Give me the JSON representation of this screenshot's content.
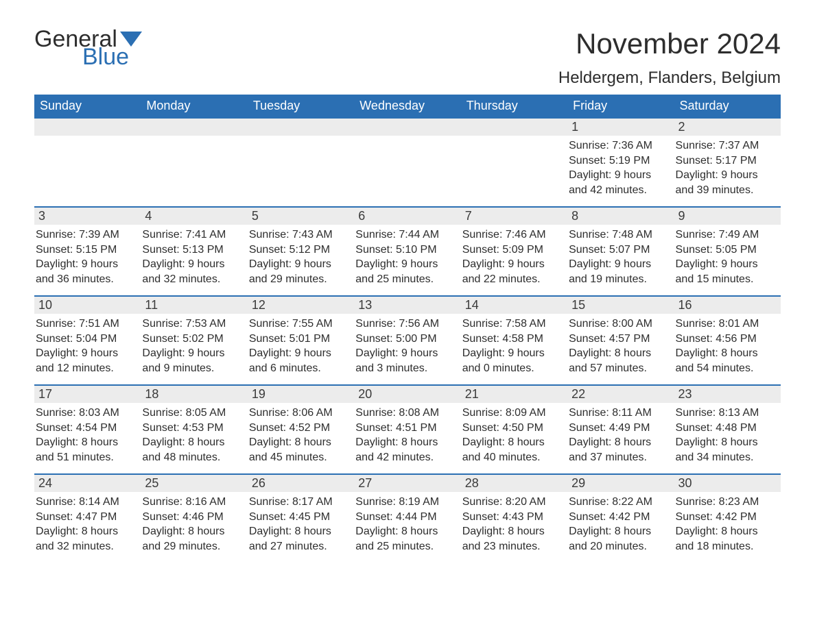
{
  "logo": {
    "text1": "General",
    "text2": "Blue",
    "flag_color": "#2b6fb3"
  },
  "title": "November 2024",
  "location": "Heldergem, Flanders, Belgium",
  "header_bg": "#2b6fb3",
  "header_fg": "#ffffff",
  "daynum_bg": "#ececec",
  "text_color": "#2d2d2d",
  "day_names": [
    "Sunday",
    "Monday",
    "Tuesday",
    "Wednesday",
    "Thursday",
    "Friday",
    "Saturday"
  ],
  "weeks": [
    [
      null,
      null,
      null,
      null,
      null,
      {
        "n": "1",
        "sr": "7:36 AM",
        "ss": "5:19 PM",
        "dl": "9 hours and 42 minutes."
      },
      {
        "n": "2",
        "sr": "7:37 AM",
        "ss": "5:17 PM",
        "dl": "9 hours and 39 minutes."
      }
    ],
    [
      {
        "n": "3",
        "sr": "7:39 AM",
        "ss": "5:15 PM",
        "dl": "9 hours and 36 minutes."
      },
      {
        "n": "4",
        "sr": "7:41 AM",
        "ss": "5:13 PM",
        "dl": "9 hours and 32 minutes."
      },
      {
        "n": "5",
        "sr": "7:43 AM",
        "ss": "5:12 PM",
        "dl": "9 hours and 29 minutes."
      },
      {
        "n": "6",
        "sr": "7:44 AM",
        "ss": "5:10 PM",
        "dl": "9 hours and 25 minutes."
      },
      {
        "n": "7",
        "sr": "7:46 AM",
        "ss": "5:09 PM",
        "dl": "9 hours and 22 minutes."
      },
      {
        "n": "8",
        "sr": "7:48 AM",
        "ss": "5:07 PM",
        "dl": "9 hours and 19 minutes."
      },
      {
        "n": "9",
        "sr": "7:49 AM",
        "ss": "5:05 PM",
        "dl": "9 hours and 15 minutes."
      }
    ],
    [
      {
        "n": "10",
        "sr": "7:51 AM",
        "ss": "5:04 PM",
        "dl": "9 hours and 12 minutes."
      },
      {
        "n": "11",
        "sr": "7:53 AM",
        "ss": "5:02 PM",
        "dl": "9 hours and 9 minutes."
      },
      {
        "n": "12",
        "sr": "7:55 AM",
        "ss": "5:01 PM",
        "dl": "9 hours and 6 minutes."
      },
      {
        "n": "13",
        "sr": "7:56 AM",
        "ss": "5:00 PM",
        "dl": "9 hours and 3 minutes."
      },
      {
        "n": "14",
        "sr": "7:58 AM",
        "ss": "4:58 PM",
        "dl": "9 hours and 0 minutes."
      },
      {
        "n": "15",
        "sr": "8:00 AM",
        "ss": "4:57 PM",
        "dl": "8 hours and 57 minutes."
      },
      {
        "n": "16",
        "sr": "8:01 AM",
        "ss": "4:56 PM",
        "dl": "8 hours and 54 minutes."
      }
    ],
    [
      {
        "n": "17",
        "sr": "8:03 AM",
        "ss": "4:54 PM",
        "dl": "8 hours and 51 minutes."
      },
      {
        "n": "18",
        "sr": "8:05 AM",
        "ss": "4:53 PM",
        "dl": "8 hours and 48 minutes."
      },
      {
        "n": "19",
        "sr": "8:06 AM",
        "ss": "4:52 PM",
        "dl": "8 hours and 45 minutes."
      },
      {
        "n": "20",
        "sr": "8:08 AM",
        "ss": "4:51 PM",
        "dl": "8 hours and 42 minutes."
      },
      {
        "n": "21",
        "sr": "8:09 AM",
        "ss": "4:50 PM",
        "dl": "8 hours and 40 minutes."
      },
      {
        "n": "22",
        "sr": "8:11 AM",
        "ss": "4:49 PM",
        "dl": "8 hours and 37 minutes."
      },
      {
        "n": "23",
        "sr": "8:13 AM",
        "ss": "4:48 PM",
        "dl": "8 hours and 34 minutes."
      }
    ],
    [
      {
        "n": "24",
        "sr": "8:14 AM",
        "ss": "4:47 PM",
        "dl": "8 hours and 32 minutes."
      },
      {
        "n": "25",
        "sr": "8:16 AM",
        "ss": "4:46 PM",
        "dl": "8 hours and 29 minutes."
      },
      {
        "n": "26",
        "sr": "8:17 AM",
        "ss": "4:45 PM",
        "dl": "8 hours and 27 minutes."
      },
      {
        "n": "27",
        "sr": "8:19 AM",
        "ss": "4:44 PM",
        "dl": "8 hours and 25 minutes."
      },
      {
        "n": "28",
        "sr": "8:20 AM",
        "ss": "4:43 PM",
        "dl": "8 hours and 23 minutes."
      },
      {
        "n": "29",
        "sr": "8:22 AM",
        "ss": "4:42 PM",
        "dl": "8 hours and 20 minutes."
      },
      {
        "n": "30",
        "sr": "8:23 AM",
        "ss": "4:42 PM",
        "dl": "8 hours and 18 minutes."
      }
    ]
  ],
  "labels": {
    "sunrise": "Sunrise:",
    "sunset": "Sunset:",
    "daylight": "Daylight:"
  }
}
